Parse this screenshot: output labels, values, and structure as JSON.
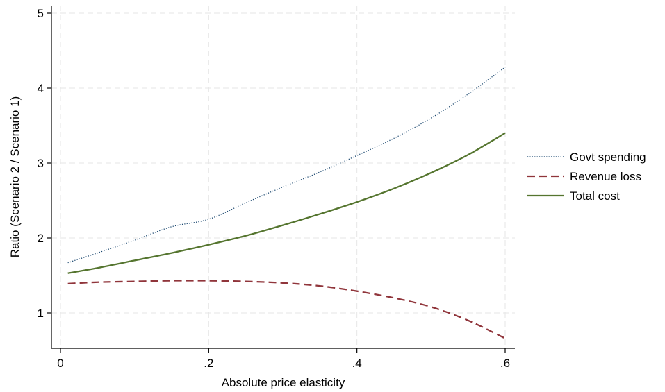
{
  "chart_data": {
    "type": "line",
    "xlabel": "Absolute price elasticity",
    "ylabel": "Ratio (Scenario 2 / Scenario 1)",
    "xlim": [
      0,
      0.6
    ],
    "ylim": [
      0.5,
      5.1
    ],
    "xticks": [
      0,
      0.2,
      0.4,
      0.6
    ],
    "xtick_labels": [
      "0",
      ".2",
      ".4",
      ".6"
    ],
    "yticks": [
      1,
      2,
      3,
      4,
      5
    ],
    "ytick_labels": [
      "1",
      "2",
      "3",
      "4",
      "5"
    ],
    "grid": true,
    "legend_position": "right",
    "x": [
      0.01,
      0.05,
      0.1,
      0.15,
      0.2,
      0.25,
      0.3,
      0.35,
      0.4,
      0.45,
      0.5,
      0.55,
      0.6
    ],
    "series": [
      {
        "name": "Govt spending",
        "style": "dotted",
        "color": "#1a476f",
        "values": [
          1.67,
          1.8,
          1.97,
          2.15,
          2.25,
          2.47,
          2.68,
          2.88,
          3.1,
          3.33,
          3.6,
          3.92,
          4.28
        ]
      },
      {
        "name": "Revenue loss",
        "style": "dashed",
        "color": "#90353b",
        "values": [
          1.39,
          1.41,
          1.42,
          1.43,
          1.43,
          1.42,
          1.4,
          1.36,
          1.29,
          1.2,
          1.08,
          0.9,
          0.66
        ]
      },
      {
        "name": "Total cost",
        "style": "solid",
        "color": "#55752f",
        "values": [
          1.53,
          1.6,
          1.7,
          1.8,
          1.91,
          2.03,
          2.17,
          2.32,
          2.48,
          2.66,
          2.87,
          3.11,
          3.4
        ]
      }
    ]
  }
}
